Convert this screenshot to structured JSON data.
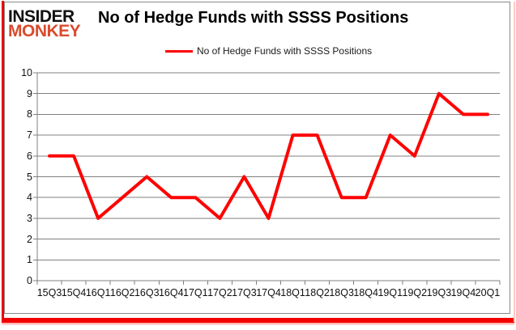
{
  "logo": {
    "line1": "INSIDER",
    "line2": "MONKEY",
    "color_line1": "#111111",
    "color_line2": "#d84b2e"
  },
  "title": "No of Hedge Funds with SSSS Positions",
  "legend": {
    "label": "No of Hedge Funds with SSSS Positions",
    "swatch_color": "#ff0000"
  },
  "chart_data": {
    "type": "line",
    "title": "No of Hedge Funds with SSSS Positions",
    "categories": [
      "15Q3",
      "15Q4",
      "16Q1",
      "16Q2",
      "16Q3",
      "16Q4",
      "17Q1",
      "17Q2",
      "17Q3",
      "17Q4",
      "18Q1",
      "18Q2",
      "18Q3",
      "18Q4",
      "19Q1",
      "19Q2",
      "19Q3",
      "19Q4",
      "20Q1"
    ],
    "series": [
      {
        "name": "No of Hedge Funds with SSSS Positions",
        "color": "#ff0000",
        "values": [
          6,
          6,
          3,
          4,
          5,
          4,
          4,
          3,
          5,
          3,
          7,
          7,
          4,
          4,
          7,
          6,
          9,
          8,
          8
        ]
      }
    ],
    "xlabel": "",
    "ylabel": "",
    "ylim": [
      0,
      10
    ],
    "y_ticks": [
      0,
      1,
      2,
      3,
      4,
      5,
      6,
      7,
      8,
      9,
      10
    ],
    "grid": true,
    "legend_position": "top"
  },
  "colors": {
    "grid": "#808080",
    "axis": "#808080",
    "frame_red": "#f20000",
    "chart_border": "#8a8a8a",
    "text": "#111111"
  }
}
